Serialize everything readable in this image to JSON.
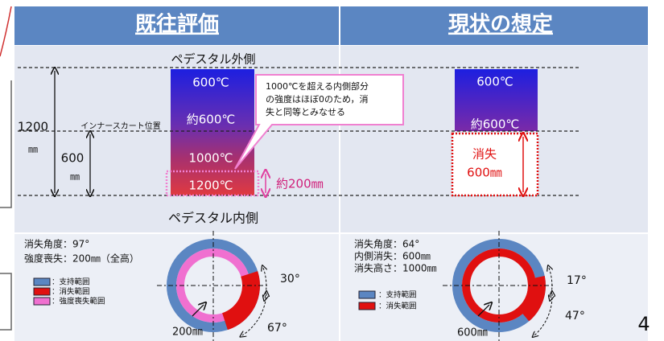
{
  "header": {
    "left_title": "既往評価",
    "right_title": "現状の想定"
  },
  "diagram": {
    "outer_label": "ペデスタル外側",
    "inner_label": "ペデスタル内側",
    "dim_total": "1200",
    "dim_total_unit": "㎜",
    "dim_skirt": "600",
    "dim_skirt_unit": "㎜",
    "skirt_label": "インナースカート位置",
    "left_column": [
      "600℃",
      "約600℃",
      "1000℃",
      "1200℃"
    ],
    "callout": [
      "1000℃を超える内側部分",
      "の強度はほぼ0のため，消",
      "失と同等とみなせる"
    ],
    "left_annotation": "約200㎜",
    "right_column": [
      "600℃",
      "約600℃"
    ],
    "right_loss": [
      "消失",
      "600㎜"
    ]
  },
  "bottom_left": {
    "lines": [
      "消失角度：97°",
      "強度喪失：200㎜（全高）"
    ],
    "legend": [
      "：支持範囲",
      "：消失範囲",
      "：強度喪失範囲"
    ],
    "angles": [
      "30°",
      "67°"
    ],
    "depth": "200㎜"
  },
  "bottom_right": {
    "lines": [
      "消失角度：64°",
      "内側消失：600㎜",
      "消失高さ：1000㎜"
    ],
    "legend": [
      "：支持範囲",
      "：消失範囲"
    ],
    "angles": [
      "17°",
      "47°"
    ],
    "depth": "600㎜"
  },
  "page_number": "4"
}
